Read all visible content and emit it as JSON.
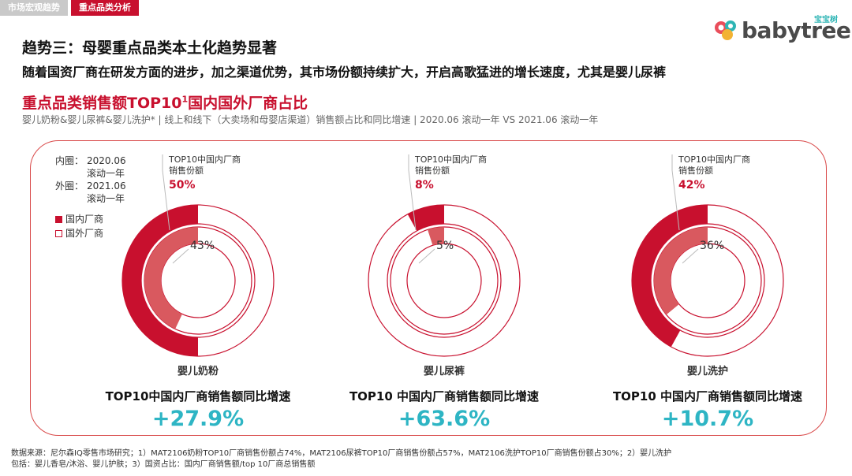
{
  "tabs": [
    {
      "label": "市场宏观趋势"
    },
    {
      "label": "重点品类分析"
    }
  ],
  "logo": {
    "name": "babytree",
    "cn": "宝宝树"
  },
  "headline": "趋势三：母婴重点品类本土化趋势显著",
  "subheadline": "随着国资厂商在研发方面的进步，加之渠道优势，其市场份额持续扩大，开启高歌猛进的增长速度，尤其是婴儿尿裤",
  "section_title": "重点品类销售额TOP10",
  "section_title_sup": "1",
  "section_title_tail": "国内国外厂商占比",
  "section_subtitle": "婴儿奶粉&婴儿尿裤&婴儿洗护* | 线上和线下（大卖场和母婴店渠道）销售额占比和同比增速 | 2020.06 滚动一年 VS 2021.06 滚动一年",
  "legend": {
    "inner_label": "内圈：",
    "inner_period": "2020.06",
    "inner_period2": "滚动一年",
    "outer_label": "外圈：",
    "outer_period": "2021.06",
    "outer_period2": "滚动一年",
    "domestic": "国内厂商",
    "foreign": "国外厂商"
  },
  "colors": {
    "domestic_outer": "#c8102e",
    "domestic_inner": "#d9595f",
    "ring_border": "#c8102e",
    "growth": "#2eb5c4",
    "accent": "#c8102e"
  },
  "chart_data": {
    "type": "pie",
    "series_names": {
      "domestic": "国内厂商",
      "foreign": "国外厂商"
    },
    "rings": {
      "inner": "2020.06 滚动一年",
      "outer": "2021.06 滚动一年"
    },
    "charts": [
      {
        "category": "婴儿奶粉",
        "outer_domestic_pct": 50,
        "inner_domestic_pct": 43,
        "callout_line1": "TOP10中国内厂商",
        "callout_line2": "销售份额",
        "outer_label": "50%",
        "inner_label": "43%",
        "growth_title": "TOP10中国内厂商销售额同比增速",
        "growth": "+27.9%"
      },
      {
        "category": "婴儿尿裤",
        "outer_domestic_pct": 8,
        "inner_domestic_pct": 5,
        "callout_line1": "TOP10中国内厂商",
        "callout_line2": "销售份额",
        "outer_label": "8%",
        "inner_label": "5%",
        "growth_title": "TOP10 中国内厂商销售额同比增速",
        "growth": "+63.6%"
      },
      {
        "category": "婴儿洗护",
        "outer_domestic_pct": 42,
        "inner_domestic_pct": 36,
        "callout_line1": "TOP10中国内厂商",
        "callout_line2": "销售份额",
        "outer_label": "42%",
        "inner_label": "36%",
        "growth_title": "TOP10 中国内厂商销售额同比增速",
        "growth": "+10.7%"
      }
    ]
  },
  "footnote_line1": "数据来源：尼尔森IQ零售市场研究；1）MAT2106奶粉TOP10厂商销售份额占74%，MAT2106尿裤TOP10厂商销售份额占57%，MAT2106洗护TOP10厂商销售份额占30%；2）婴儿洗护",
  "footnote_line2": "包括：婴儿香皂/沐浴、婴儿护肤；3）国资占比：国内厂商销售额/top 10厂商总销售额"
}
